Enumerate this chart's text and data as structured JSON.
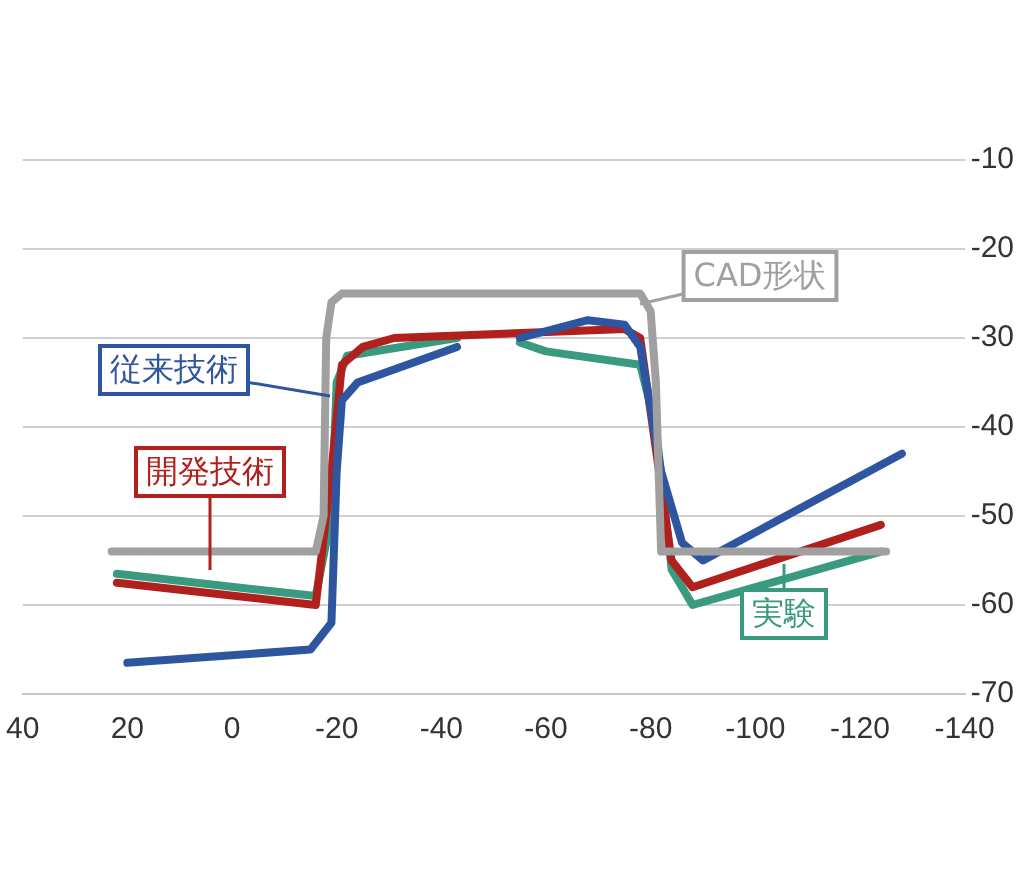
{
  "chart_data": {
    "type": "line",
    "xlim": [
      40,
      -140
    ],
    "xticks": [
      40,
      20,
      0,
      -20,
      -40,
      -60,
      -80,
      -100,
      -120,
      -140
    ],
    "ylim": [
      -70,
      -10
    ],
    "yticks": [
      -70,
      -60,
      -50,
      -40,
      -30,
      -20,
      -10
    ],
    "grid": "y",
    "legend": false,
    "marker": "none",
    "line_style": "solid",
    "series": [
      {
        "name": "CAD形状",
        "color": "#a0a0a0",
        "x": [
          23,
          -16,
          -17.5,
          -18,
          -19,
          -21,
          -78,
          -80,
          -81,
          -82,
          -125
        ],
        "values": [
          -54,
          -54,
          -50,
          -30,
          -26,
          -25,
          -25,
          -27,
          -35,
          -54,
          -54
        ]
      },
      {
        "name": "従来技術",
        "color": "#2e56a0",
        "x": [
          20,
          -15,
          -19,
          -20,
          -21,
          -24,
          -43,
          -49,
          -55,
          -68,
          -75,
          -78,
          -82,
          -86,
          -90,
          -128
        ],
        "values": [
          -66.5,
          -65,
          -62,
          -45,
          -37,
          -35,
          -31,
          null,
          -30,
          -28,
          -28.5,
          -31,
          -45,
          -53,
          -55,
          -43
        ]
      },
      {
        "name": "開発技術",
        "color": "#b0201c",
        "x": [
          22,
          -16,
          -19,
          -21,
          -25,
          -31,
          -75,
          -78,
          -84,
          -88,
          -124
        ],
        "values": [
          -57.5,
          -60,
          -45,
          -33,
          -31,
          -30,
          -29,
          -30,
          -55,
          -58,
          -51
        ]
      },
      {
        "name": "実験",
        "color": "#3a9a80",
        "x": [
          22,
          -16,
          -19,
          -20,
          -22,
          -43,
          -49,
          -55,
          -60,
          -78,
          -81,
          -84,
          -88,
          -124
        ],
        "values": [
          -56.5,
          -59,
          -50,
          -35,
          -32,
          -30,
          null,
          -30.5,
          -31.5,
          -33,
          -40,
          -56,
          -60,
          -54
        ]
      }
    ]
  }
}
